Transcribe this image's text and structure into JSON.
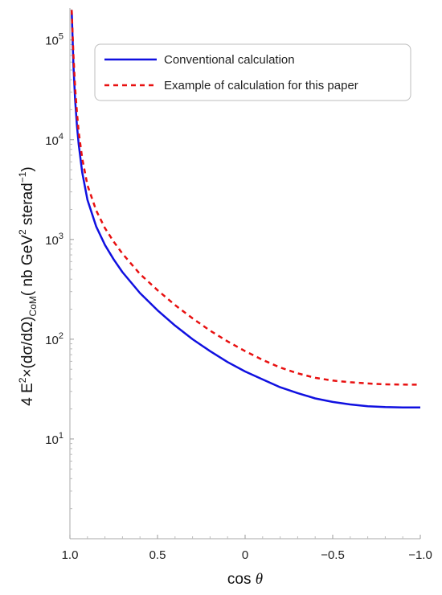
{
  "chart_data": {
    "type": "line",
    "title": "",
    "xlabel": {
      "main": "cos ",
      "italic": "θ"
    },
    "ylabel": {
      "p1": "4 E",
      "sup1": "2",
      "p2": "×(dσ/dΩ)",
      "sub1": "CoM",
      "p3": "( nb GeV",
      "sup2": "2",
      "p4": " sterad",
      "sup3": "−1",
      "p5": ")"
    },
    "x_reversed": true,
    "xlim": [
      1.0,
      -1.0
    ],
    "ylim_log10": [
      0,
      5.32
    ],
    "y_scale": "log",
    "x_ticks": [
      {
        "value": 1.0,
        "label": "1.0"
      },
      {
        "value": 0.5,
        "label": "0.5"
      },
      {
        "value": 0.0,
        "label": "0"
      },
      {
        "value": -0.5,
        "label": "−0.5"
      },
      {
        "value": -1.0,
        "label": "−1.0"
      }
    ],
    "y_ticks": [
      {
        "exp": 1,
        "base": "10",
        "sup": "1"
      },
      {
        "exp": 2,
        "base": "10",
        "sup": "2"
      },
      {
        "exp": 3,
        "base": "10",
        "sup": "3"
      },
      {
        "exp": 4,
        "base": "10",
        "sup": "4"
      },
      {
        "exp": 5,
        "base": "10",
        "sup": "5"
      }
    ],
    "legend_position": "top-right",
    "series": [
      {
        "name": "Conventional calculation",
        "color": "#1010e0",
        "style": "solid",
        "points": [
          [
            0.99,
            200000
          ],
          [
            0.98,
            55000
          ],
          [
            0.97,
            25000
          ],
          [
            0.96,
            14000
          ],
          [
            0.95,
            9000
          ],
          [
            0.93,
            4700
          ],
          [
            0.9,
            2500
          ],
          [
            0.85,
            1350
          ],
          [
            0.8,
            880
          ],
          [
            0.75,
            630
          ],
          [
            0.7,
            470
          ],
          [
            0.6,
            290
          ],
          [
            0.5,
            195
          ],
          [
            0.4,
            137
          ],
          [
            0.3,
            100
          ],
          [
            0.2,
            76
          ],
          [
            0.1,
            59
          ],
          [
            0.0,
            47.5
          ],
          [
            -0.1,
            39.5
          ],
          [
            -0.2,
            33
          ],
          [
            -0.3,
            28.8
          ],
          [
            -0.4,
            25.5
          ],
          [
            -0.5,
            23.5
          ],
          [
            -0.6,
            22.2
          ],
          [
            -0.7,
            21.3
          ],
          [
            -0.8,
            20.9
          ],
          [
            -0.9,
            20.7
          ],
          [
            -1.0,
            20.7
          ]
        ]
      },
      {
        "name": "Example of calculation for this paper",
        "color": "#e81010",
        "style": "dashed",
        "points": [
          [
            0.99,
            200000
          ],
          [
            0.98,
            70000
          ],
          [
            0.97,
            33000
          ],
          [
            0.96,
            19000
          ],
          [
            0.95,
            12000
          ],
          [
            0.93,
            6500
          ],
          [
            0.9,
            3500
          ],
          [
            0.85,
            1950
          ],
          [
            0.8,
            1300
          ],
          [
            0.75,
            950
          ],
          [
            0.7,
            720
          ],
          [
            0.6,
            450
          ],
          [
            0.5,
            310
          ],
          [
            0.4,
            220
          ],
          [
            0.3,
            162
          ],
          [
            0.2,
            122
          ],
          [
            0.1,
            95
          ],
          [
            0.0,
            76
          ],
          [
            -0.1,
            62
          ],
          [
            -0.2,
            52
          ],
          [
            -0.3,
            45.5
          ],
          [
            -0.4,
            41
          ],
          [
            -0.5,
            38.5
          ],
          [
            -0.6,
            37
          ],
          [
            -0.7,
            36
          ],
          [
            -0.8,
            35.3
          ],
          [
            -0.9,
            35.1
          ],
          [
            -1.0,
            35
          ]
        ]
      }
    ]
  }
}
